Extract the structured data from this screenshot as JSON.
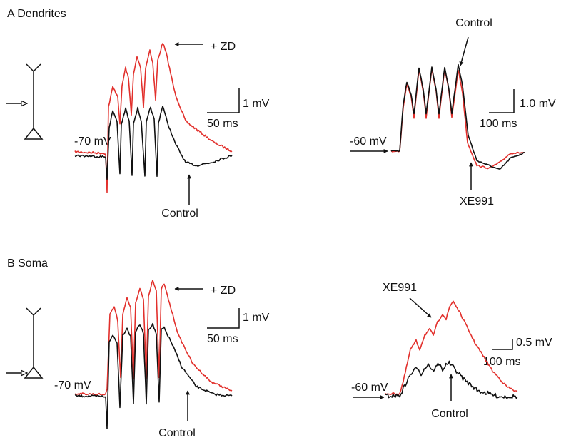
{
  "panels": [
    {
      "label": "A Dendrites",
      "left": {
        "resting": "-70 mV",
        "drug_label": "+ ZD",
        "control_label": "Control",
        "scale_y": "1 mV",
        "scale_x": "50 ms"
      },
      "right": {
        "resting": "-60 mV",
        "top_label": "Control",
        "bottom_label": "XE991",
        "scale_y": "1.0 mV",
        "scale_x": "100 ms"
      }
    },
    {
      "label": "B Soma",
      "left": {
        "resting": "-70 mV",
        "drug_label": "+ ZD",
        "control_label": "Control",
        "scale_y": "1 mV",
        "scale_x": "50 ms"
      },
      "right": {
        "resting": "-60 mV",
        "top_label": "XE991",
        "bottom_label": "Control",
        "scale_y": "0.5 mV",
        "scale_x": "100 ms"
      }
    }
  ]
}
